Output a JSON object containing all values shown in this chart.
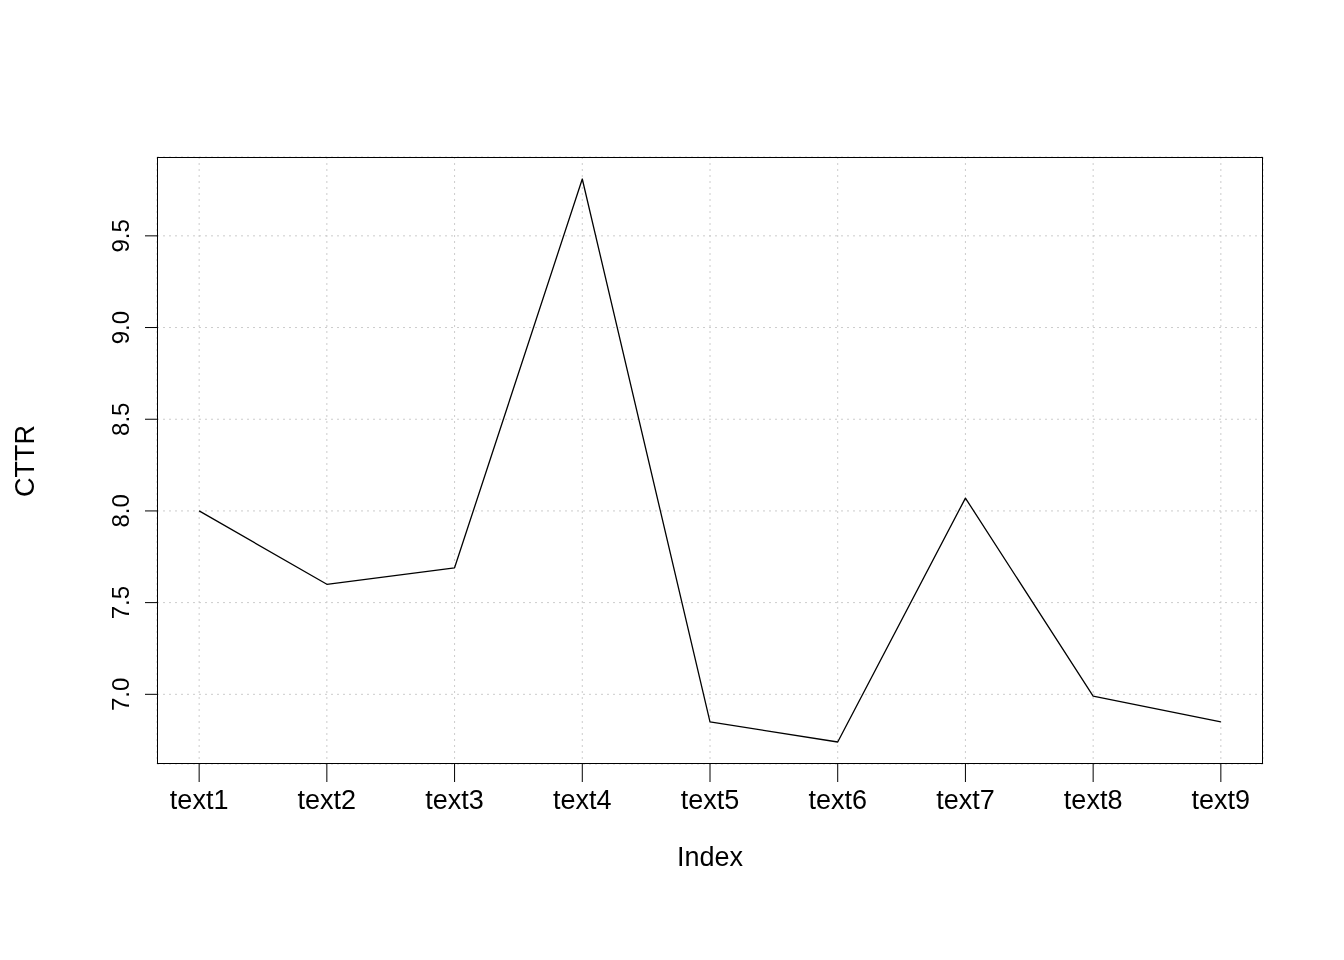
{
  "chart_data": {
    "type": "line",
    "xlabel": "Index",
    "ylabel": "CTTR",
    "categories": [
      "text1",
      "text2",
      "text3",
      "text4",
      "text5",
      "text6",
      "text7",
      "text8",
      "text9"
    ],
    "series": [
      {
        "color": "#000000",
        "values": [
          8.0,
          7.6,
          7.69,
          9.81,
          6.85,
          6.74,
          8.07,
          6.99,
          6.85
        ]
      }
    ],
    "ylim": [
      6.62,
      9.93
    ],
    "yticks": [
      {
        "value": 7,
        "label": "7.0"
      },
      {
        "value": 7.5,
        "label": "7.5"
      },
      {
        "value": 8,
        "label": "8.0"
      },
      {
        "value": 8.5,
        "label": "8.5"
      },
      {
        "value": 9,
        "label": "9.0"
      },
      {
        "value": 9.5,
        "label": "9.5"
      }
    ],
    "grid": true,
    "marker": "none",
    "line_style": "solid"
  }
}
